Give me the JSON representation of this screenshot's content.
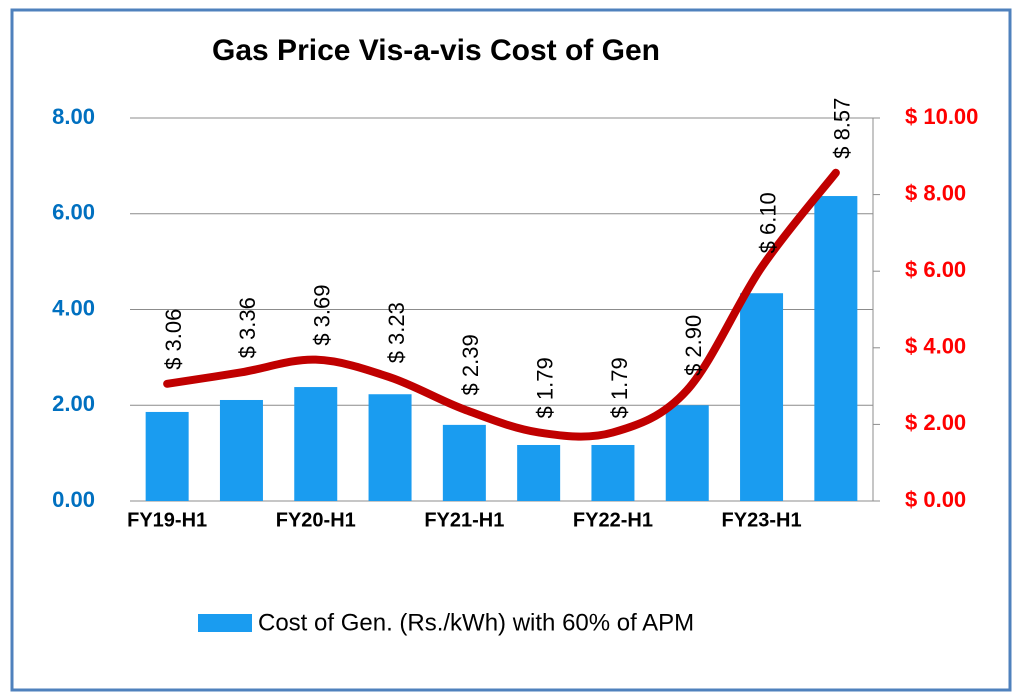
{
  "chart_data": {
    "type": "bar",
    "title": "Gas Price Vis-a-vis Cost of Gen",
    "categories": [
      "FY19-H1",
      null,
      "FY20-H1",
      null,
      "FY21-H1",
      null,
      "FY22-H1",
      null,
      "FY23-H1",
      null
    ],
    "series": [
      {
        "name": "Cost of Gen. (Rs./kWh) with 60% of APM",
        "type": "bar",
        "color": "#1a9cf0",
        "values": [
          1.86,
          2.11,
          2.38,
          2.23,
          1.59,
          1.17,
          1.17,
          2.0,
          4.34,
          6.37
        ]
      },
      {
        "type": "line",
        "axis": "y2",
        "color": "#c00000",
        "values": [
          3.06,
          3.36,
          3.69,
          3.23,
          2.39,
          1.79,
          1.79,
          2.9,
          6.1,
          8.57
        ],
        "value_labels": [
          "$ 3.06",
          "$ 3.36",
          "$ 3.69",
          "$ 3.23",
          "$ 2.39",
          "$ 1.79",
          "$ 1.79",
          "$ 2.90",
          "$ 6.10",
          "$ 8.57"
        ]
      }
    ],
    "ylim": [
      0,
      8
    ],
    "yticks": [
      {
        "value": 0,
        "label": "0.00"
      },
      {
        "value": 2,
        "label": "2.00"
      },
      {
        "value": 4,
        "label": "4.00"
      },
      {
        "value": 6,
        "label": "6.00"
      },
      {
        "value": 8,
        "label": "8.00"
      }
    ],
    "y2lim": [
      0,
      10
    ],
    "y2ticks": [
      {
        "value": 0,
        "label": "$ 0.00"
      },
      {
        "value": 2,
        "label": "$ 2.00"
      },
      {
        "value": 4,
        "label": "$ 4.00"
      },
      {
        "value": 6,
        "label": "$ 6.00"
      },
      {
        "value": 8,
        "label": "$ 8.00"
      },
      {
        "value": 10,
        "label": "$ 10.00"
      }
    ],
    "grid": true,
    "legend": "bottom"
  }
}
